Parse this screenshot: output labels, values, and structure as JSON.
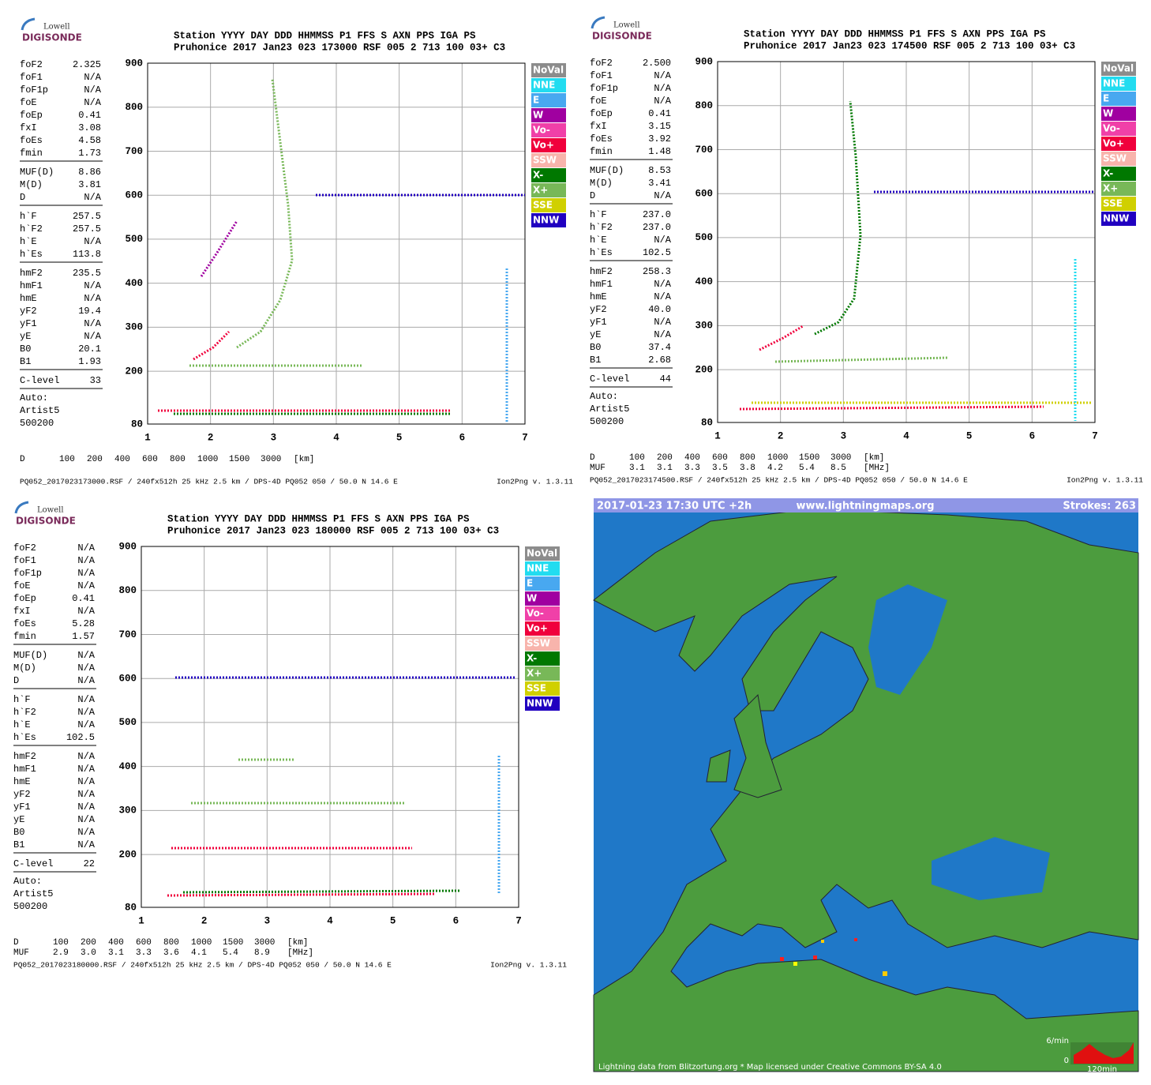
{
  "yticks": [
    "900",
    "800",
    "700",
    "600",
    "500",
    "400",
    "300",
    "200",
    "80"
  ],
  "xticks": [
    "1",
    "2",
    "3",
    "4",
    "5",
    "6",
    "7"
  ],
  "legend": [
    [
      "NoVal",
      "#8c8c8c"
    ],
    [
      "NNE",
      "#22dcf0"
    ],
    [
      "E",
      "#48a8f0"
    ],
    [
      "W",
      "#a000a0"
    ],
    [
      "Vo-",
      "#f040a8"
    ],
    [
      "Vo+",
      "#f0003c"
    ],
    [
      "SSW",
      "#f8b4ac"
    ],
    [
      "X-",
      "#007800"
    ],
    [
      "X+",
      "#78b858"
    ],
    [
      "SSE",
      "#d0d000"
    ],
    [
      "NNW",
      "#2000c0"
    ]
  ],
  "panels": [
    {
      "logo": [
        "Lowell",
        "DIGISONDE"
      ],
      "header": [
        "Station  YYYY DAY  DDD HHMMSS P1  FFS S AXN PPS IGA PS",
        "Pruhonice 2017 Jan23 023 173000 RSF 005 2 713 100 03+ C3"
      ],
      "params": [
        [
          [
            "foF2",
            "2.325"
          ],
          [
            "foF1",
            "N/A"
          ],
          [
            "foF1p",
            "N/A"
          ],
          [
            "foE",
            "N/A"
          ],
          [
            "foEp",
            "0.41"
          ],
          [
            "fxI",
            "3.08"
          ],
          [
            "foEs",
            "4.58"
          ],
          [
            "fmin",
            "1.73"
          ]
        ],
        [
          [
            "MUF(D)",
            "8.86"
          ],
          [
            "M(D)",
            "3.81"
          ],
          [
            "D",
            "N/A"
          ]
        ],
        [
          [
            "h`F",
            "257.5"
          ],
          [
            "h`F2",
            "257.5"
          ],
          [
            "h`E",
            "N/A"
          ],
          [
            "h`Es",
            "113.8"
          ]
        ],
        [
          [
            "hmF2",
            "235.5"
          ],
          [
            "hmF1",
            "N/A"
          ],
          [
            "hmE",
            "N/A"
          ],
          [
            "yF2",
            "19.4"
          ],
          [
            "yF1",
            "N/A"
          ],
          [
            "yE",
            "N/A"
          ],
          [
            "B0",
            "20.1"
          ],
          [
            "B1",
            "1.93"
          ]
        ],
        [
          [
            "C-level",
            "33"
          ]
        ]
      ],
      "auto": [
        "Auto:",
        "Artist5",
        "500200"
      ],
      "rows": [
        [
          "D",
          "100",
          "200",
          "400",
          "600",
          "800",
          "1000",
          "1500",
          "3000",
          "[km]"
        ]
      ],
      "file": "PQ052_2017023173000.RSF / 240fx512h 25 kHz 2.5 km / DPS-4D PQ052 050 / 50.0 N 14.6 E",
      "version": "Ion2Png v. 1.3.11"
    },
    {
      "logo": [
        "Lowell",
        "DIGISONDE"
      ],
      "header": [
        "Station  YYYY DAY  DDD HHMMSS P1  FFS S AXN PPS IGA PS",
        "Pruhonice 2017 Jan23 023 174500 RSF 005 2 713 100 03+ C3"
      ],
      "params": [
        [
          [
            "foF2",
            "2.500"
          ],
          [
            "foF1",
            "N/A"
          ],
          [
            "foF1p",
            "N/A"
          ],
          [
            "foE",
            "N/A"
          ],
          [
            "foEp",
            "0.41"
          ],
          [
            "fxI",
            "3.15"
          ],
          [
            "foEs",
            "3.92"
          ],
          [
            "fmin",
            "1.48"
          ]
        ],
        [
          [
            "MUF(D)",
            "8.53"
          ],
          [
            "M(D)",
            "3.41"
          ],
          [
            "D",
            "N/A"
          ]
        ],
        [
          [
            "h`F",
            "237.0"
          ],
          [
            "h`F2",
            "237.0"
          ],
          [
            "h`E",
            "N/A"
          ],
          [
            "h`Es",
            "102.5"
          ]
        ],
        [
          [
            "hmF2",
            "258.3"
          ],
          [
            "hmF1",
            "N/A"
          ],
          [
            "hmE",
            "N/A"
          ],
          [
            "yF2",
            "40.0"
          ],
          [
            "yF1",
            "N/A"
          ],
          [
            "yE",
            "N/A"
          ],
          [
            "B0",
            "37.4"
          ],
          [
            "B1",
            "2.68"
          ]
        ],
        [
          [
            "C-level",
            "44"
          ]
        ]
      ],
      "auto": [
        "Auto:",
        "Artist5",
        "500200"
      ],
      "rows": [
        [
          "D",
          "100",
          "200",
          "400",
          "600",
          "800",
          "1000",
          "1500",
          "3000",
          "[km]"
        ],
        [
          "MUF",
          "3.1",
          "3.1",
          "3.3",
          "3.5",
          "3.8",
          "4.2",
          "5.4",
          "8.5",
          "[MHz]"
        ]
      ],
      "file": "PQ052_2017023174500.RSF / 240fx512h 25 kHz 2.5 km / DPS-4D PQ052 050 / 50.0 N 14.6 E",
      "version": "Ion2Png v. 1.3.11"
    },
    {
      "logo": [
        "Lowell",
        "DIGISONDE"
      ],
      "header": [
        "Station  YYYY DAY  DDD HHMMSS P1  FFS S AXN PPS IGA PS",
        "Pruhonice 2017 Jan23 023 180000 RSF 005 2 713 100 03+ C3"
      ],
      "params": [
        [
          [
            "foF2",
            "N/A"
          ],
          [
            "foF1",
            "N/A"
          ],
          [
            "foF1p",
            "N/A"
          ],
          [
            "foE",
            "N/A"
          ],
          [
            "foEp",
            "0.41"
          ],
          [
            "fxI",
            "N/A"
          ],
          [
            "foEs",
            "5.28"
          ],
          [
            "fmin",
            "1.57"
          ]
        ],
        [
          [
            "MUF(D)",
            "N/A"
          ],
          [
            "M(D)",
            "N/A"
          ],
          [
            "D",
            "N/A"
          ]
        ],
        [
          [
            "h`F",
            "N/A"
          ],
          [
            "h`F2",
            "N/A"
          ],
          [
            "h`E",
            "N/A"
          ],
          [
            "h`Es",
            "102.5"
          ]
        ],
        [
          [
            "hmF2",
            "N/A"
          ],
          [
            "hmF1",
            "N/A"
          ],
          [
            "hmE",
            "N/A"
          ],
          [
            "yF2",
            "N/A"
          ],
          [
            "yF1",
            "N/A"
          ],
          [
            "yE",
            "N/A"
          ],
          [
            "B0",
            "N/A"
          ],
          [
            "B1",
            "N/A"
          ]
        ],
        [
          [
            "C-level",
            "22"
          ]
        ]
      ],
      "auto": [
        "Auto:",
        "Artist5",
        "500200"
      ],
      "rows": [
        [
          "D",
          "100",
          "200",
          "400",
          "600",
          "800",
          "1000",
          "1500",
          "3000",
          "[km]"
        ],
        [
          "MUF",
          "2.9",
          "3.0",
          "3.1",
          "3.3",
          "3.6",
          "4.1",
          "5.4",
          "8.9",
          "[MHz]"
        ]
      ],
      "file": "PQ052_2017023180000.RSF / 240fx512h 25 kHz 2.5 km / DPS-4D PQ052 050 / 50.0 N 14.6 E",
      "version": "Ion2Png v. 1.3.11"
    }
  ],
  "map": {
    "time": "2017-01-23 17:30 UTC +2h",
    "site": "www.lightningmaps.org",
    "strokes": "Strokes: 263",
    "credit": "Lightning data from Blitzortung.org  *  Map licensed under Creative Commons BY-SA 4.0",
    "scale_top": "6/min",
    "scale_zero": "0",
    "scale_span": "120min"
  }
}
